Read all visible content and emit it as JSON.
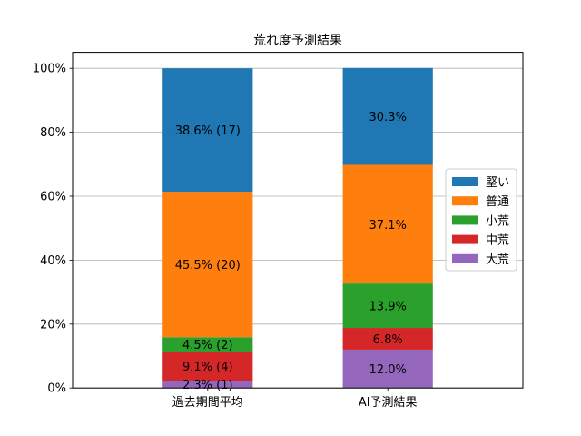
{
  "chart_data": {
    "type": "bar",
    "stacked": true,
    "title": "荒れ度予測結果",
    "categories": [
      "過去期間平均",
      "AI予測結果"
    ],
    "ylim": [
      0,
      100
    ],
    "y_unit": "%",
    "yticks": [
      "0%",
      "20%",
      "40%",
      "60%",
      "80%",
      "100%"
    ],
    "grid": true,
    "legend_position": "right",
    "series": [
      {
        "name": "大荒",
        "color": "#9467bd",
        "values": [
          2.3,
          12.0
        ],
        "labels": [
          "2.3% (1)",
          "12.0%"
        ]
      },
      {
        "name": "中荒",
        "color": "#d62728",
        "values": [
          9.1,
          6.8
        ],
        "labels": [
          "9.1% (4)",
          "6.8%"
        ]
      },
      {
        "name": "小荒",
        "color": "#2ca02c",
        "values": [
          4.5,
          13.9
        ],
        "labels": [
          "4.5% (2)",
          "13.9%"
        ]
      },
      {
        "name": "普通",
        "color": "#ff7f0e",
        "values": [
          45.5,
          37.1
        ],
        "labels": [
          "45.5% (20)",
          "37.1%"
        ]
      },
      {
        "name": "堅い",
        "color": "#1f77b4",
        "values": [
          38.6,
          30.3
        ],
        "labels": [
          "38.6% (17)",
          "30.3%"
        ]
      }
    ],
    "legend_order": [
      "堅い",
      "普通",
      "小荒",
      "中荒",
      "大荒"
    ]
  }
}
